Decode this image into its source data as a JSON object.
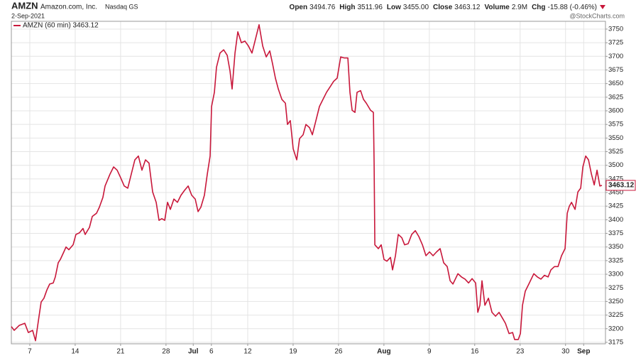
{
  "chart_data": {
    "type": "line",
    "symbol": "AMZN",
    "company": "Amazon.com, Inc.",
    "exchange": "Nasdaq GS",
    "date": "2-Sep-2021",
    "watermark": "@StockCharts.com",
    "quote": [
      {
        "label": "Open",
        "value": "3494.76"
      },
      {
        "label": "High",
        "value": "3511.96"
      },
      {
        "label": "Low",
        "value": "3455.00"
      },
      {
        "label": "Close",
        "value": "3463.12"
      },
      {
        "label": "Volume",
        "value": "2.9M"
      },
      {
        "label": "Chg",
        "value": "-15.88 (-0.46%)"
      }
    ],
    "xlim": [
      -2.03,
      63.4
    ],
    "ylim": [
      3172.3,
      3764.3
    ],
    "xticks": [
      {
        "value": 0,
        "label": "7"
      },
      {
        "value": 5,
        "label": "14"
      },
      {
        "value": 10,
        "label": "21"
      },
      {
        "value": 15,
        "label": "28"
      },
      {
        "value": 18,
        "label": "Jul"
      },
      {
        "value": 20,
        "label": "6"
      },
      {
        "value": 24,
        "label": "12"
      },
      {
        "value": 29,
        "label": "19"
      },
      {
        "value": 34,
        "label": "26"
      },
      {
        "value": 39,
        "label": "Aug"
      },
      {
        "value": 44,
        "label": "9"
      },
      {
        "value": 49,
        "label": "16"
      },
      {
        "value": 54,
        "label": "23"
      },
      {
        "value": 59,
        "label": "30"
      },
      {
        "value": 61,
        "label": "Sep"
      }
    ],
    "yticks": [
      3175,
      3200,
      3225,
      3250,
      3275,
      3300,
      3325,
      3350,
      3375,
      3400,
      3425,
      3450,
      3475,
      3500,
      3525,
      3550,
      3575,
      3600,
      3625,
      3650,
      3675,
      3700,
      3725,
      3750
    ],
    "grid": true,
    "series": [
      {
        "name": "AMZN (60 min) 3463.12",
        "color": "#c8173a",
        "x": [
          -2.03,
          -1.72,
          -1.17,
          -0.55,
          -0.16,
          0.31,
          0.63,
          1.02,
          1.25,
          1.56,
          1.88,
          2.19,
          2.58,
          2.81,
          3.13,
          3.36,
          3.75,
          3.99,
          4.3,
          4.77,
          5.08,
          5.47,
          5.86,
          6.1,
          6.57,
          6.88,
          7.35,
          7.66,
          8.05,
          8.29,
          8.84,
          9.23,
          9.62,
          10.01,
          10.4,
          10.79,
          11.18,
          11.57,
          11.96,
          12.35,
          12.74,
          13.13,
          13.53,
          13.92,
          14.23,
          14.54,
          14.86,
          15.17,
          15.48,
          15.87,
          16.26,
          16.65,
          17.04,
          17.44,
          17.83,
          18.22,
          18.53,
          18.84,
          19.23,
          19.55,
          19.86,
          20.02,
          20.33,
          20.56,
          20.95,
          21.35,
          21.74,
          22.05,
          22.28,
          22.6,
          22.91,
          23.3,
          23.69,
          24.08,
          24.47,
          24.86,
          25.25,
          25.65,
          26.04,
          26.43,
          26.74,
          27.05,
          27.37,
          27.76,
          28.15,
          28.38,
          28.69,
          29.01,
          29.4,
          29.71,
          30.1,
          30.41,
          30.81,
          31.12,
          31.51,
          31.9,
          32.29,
          32.68,
          33.07,
          33.46,
          33.85,
          34.24,
          34.64,
          35.03,
          35.26,
          35.5,
          35.81,
          36.04,
          36.43,
          36.75,
          37.06,
          37.53,
          37.84,
          37.92,
          38.0,
          38.39,
          38.7,
          39.01,
          39.33,
          39.72,
          39.95,
          40.27,
          40.58,
          40.97,
          41.28,
          41.67,
          42.06,
          42.46,
          42.85,
          43.24,
          43.63,
          44.02,
          44.41,
          44.8,
          45.19,
          45.58,
          45.97,
          46.29,
          46.6,
          47.15,
          47.54,
          47.93,
          48.32,
          48.71,
          49.1,
          49.34,
          49.57,
          49.8,
          50.12,
          50.51,
          50.9,
          51.29,
          51.68,
          52.07,
          52.38,
          52.78,
          53.17,
          53.4,
          53.79,
          54.03,
          54.26,
          54.57,
          54.96,
          55.51,
          55.9,
          56.29,
          56.68,
          57.08,
          57.39,
          57.78,
          58.17,
          58.56,
          58.95,
          59.19,
          59.42,
          59.66,
          60.05,
          60.36,
          60.67,
          60.91,
          61.22,
          61.53,
          61.85,
          62.16,
          62.47,
          62.78,
          63.01
        ],
        "values": [
          3204,
          3197,
          3206,
          3210,
          3193,
          3197,
          3178,
          3223,
          3249,
          3256,
          3271,
          3282,
          3284,
          3295,
          3321,
          3327,
          3341,
          3350,
          3345,
          3354,
          3373,
          3376,
          3384,
          3373,
          3386,
          3406,
          3412,
          3423,
          3441,
          3462,
          3484,
          3497,
          3491,
          3477,
          3462,
          3458,
          3484,
          3510,
          3517,
          3491,
          3510,
          3504,
          3451,
          3432,
          3399,
          3402,
          3399,
          3432,
          3419,
          3438,
          3432,
          3445,
          3454,
          3462,
          3445,
          3438,
          3415,
          3423,
          3445,
          3484,
          3517,
          3608,
          3634,
          3680,
          3706,
          3712,
          3702,
          3673,
          3640,
          3706,
          3745,
          3725,
          3728,
          3719,
          3706,
          3732,
          3758,
          3719,
          3699,
          3710,
          3686,
          3660,
          3640,
          3621,
          3614,
          3575,
          3582,
          3530,
          3510,
          3549,
          3556,
          3575,
          3569,
          3556,
          3582,
          3608,
          3621,
          3634,
          3644,
          3654,
          3660,
          3699,
          3697,
          3697,
          3634,
          3601,
          3597,
          3634,
          3637,
          3621,
          3614,
          3601,
          3597,
          3504,
          3354,
          3347,
          3354,
          3327,
          3324,
          3331,
          3308,
          3334,
          3373,
          3367,
          3354,
          3356,
          3373,
          3380,
          3369,
          3354,
          3334,
          3341,
          3334,
          3341,
          3347,
          3321,
          3314,
          3288,
          3282,
          3301,
          3295,
          3291,
          3284,
          3292,
          3284,
          3230,
          3243,
          3288,
          3243,
          3256,
          3230,
          3223,
          3230,
          3219,
          3210,
          3191,
          3193,
          3180,
          3180,
          3191,
          3243,
          3269,
          3282,
          3301,
          3295,
          3291,
          3298,
          3295,
          3308,
          3314,
          3314,
          3334,
          3347,
          3412,
          3425,
          3432,
          3419,
          3451,
          3458,
          3497,
          3517,
          3510,
          3484,
          3464,
          3491,
          3462,
          3463.12
        ]
      }
    ]
  }
}
